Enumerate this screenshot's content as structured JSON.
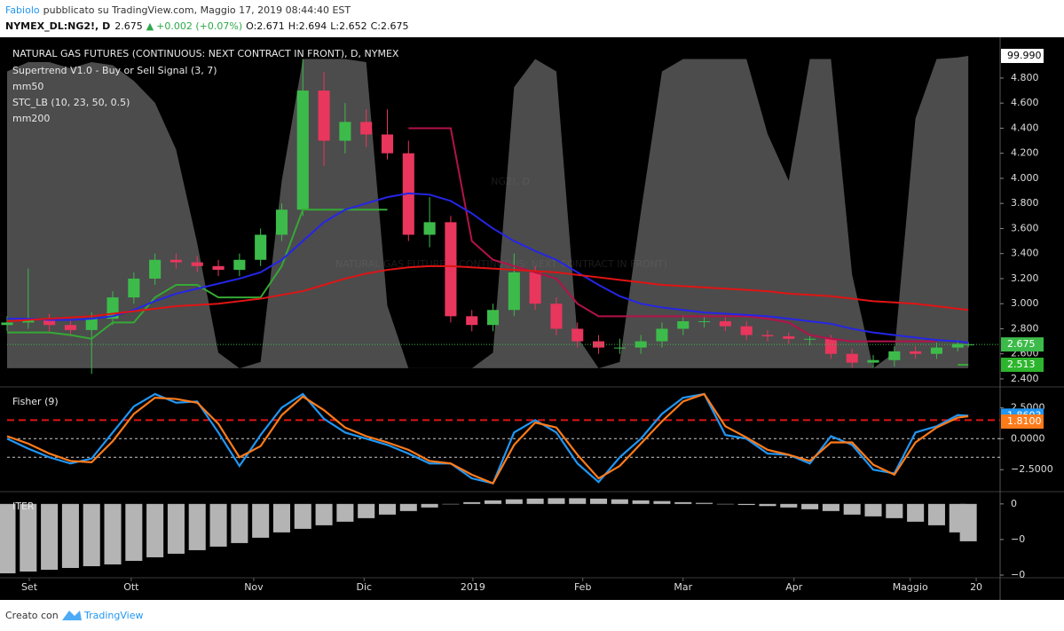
{
  "header": {
    "author": "Fabiolo",
    "published": "pubblicato su TradingView.com, Maggio 17, 2019 08:44:40 EST",
    "symbol": "NYMEX_DL:NG2!, D",
    "price": "2.675",
    "arrow": "▲",
    "change": "+0.002 (+0.07%)",
    "ohlc": [
      {
        "label": "O:",
        "value": "2.671"
      },
      {
        "label": "H:",
        "value": "2.694"
      },
      {
        "label": "L:",
        "value": "2.652"
      },
      {
        "label": "C:",
        "value": "2.675"
      }
    ]
  },
  "footer": {
    "text": "Creato con",
    "brand": "TradingView"
  },
  "chart_data": [
    {
      "type": "candlestick",
      "title": "NATURAL GAS FUTURES (CONTINUOUS: NEXT CONTRACT IN FRONT), D, NYMEX",
      "watermark": [
        "NG2!, D",
        "NATURAL GAS FUTURES (CONTINUOUS: NEXT CONTRACT IN FRONT)"
      ],
      "x": [
        0,
        4,
        8,
        12,
        16,
        20,
        24,
        28,
        32,
        36,
        40,
        44,
        48,
        52,
        56,
        60,
        64,
        68,
        72,
        76,
        80,
        84,
        88,
        92,
        96,
        100,
        104,
        108,
        112,
        116,
        120,
        124,
        128,
        132,
        136,
        140,
        144,
        148,
        152,
        156,
        160,
        164,
        168,
        172,
        176,
        180,
        182
      ],
      "open": [
        2.83,
        2.85,
        2.87,
        2.83,
        2.79,
        2.88,
        3.05,
        3.2,
        3.35,
        3.33,
        3.3,
        3.27,
        3.35,
        3.55,
        3.75,
        4.7,
        4.3,
        4.45,
        4.35,
        4.2,
        3.55,
        3.65,
        2.9,
        2.83,
        2.95,
        3.25,
        3.0,
        2.8,
        2.7,
        2.65,
        2.65,
        2.7,
        2.8,
        2.86,
        2.86,
        2.82,
        2.75,
        2.74,
        2.72,
        2.72,
        2.6,
        2.53,
        2.55,
        2.62,
        2.6,
        2.65,
        2.671
      ],
      "high": [
        2.9,
        3.28,
        2.92,
        2.88,
        2.93,
        3.1,
        3.25,
        3.4,
        3.4,
        3.38,
        3.35,
        3.4,
        3.6,
        3.8,
        4.95,
        4.85,
        4.6,
        4.55,
        4.55,
        4.3,
        3.85,
        3.7,
        2.95,
        3.0,
        3.4,
        3.3,
        3.05,
        2.85,
        2.75,
        2.72,
        2.75,
        2.85,
        2.91,
        2.9,
        2.89,
        2.86,
        2.79,
        2.77,
        2.76,
        2.75,
        2.64,
        2.59,
        2.66,
        2.66,
        2.69,
        2.71,
        2.694
      ],
      "low": [
        2.78,
        2.8,
        2.78,
        2.74,
        2.44,
        2.83,
        3.0,
        3.15,
        3.28,
        3.25,
        3.22,
        3.22,
        3.3,
        3.5,
        3.7,
        4.1,
        4.2,
        4.25,
        4.15,
        3.5,
        3.45,
        2.85,
        2.78,
        2.78,
        2.9,
        2.95,
        2.75,
        2.65,
        2.6,
        2.6,
        2.6,
        2.65,
        2.75,
        2.81,
        2.78,
        2.71,
        2.7,
        2.68,
        2.67,
        2.56,
        2.49,
        2.49,
        2.5,
        2.56,
        2.56,
        2.62,
        2.652
      ],
      "close": [
        2.85,
        2.87,
        2.83,
        2.79,
        2.88,
        3.05,
        3.2,
        3.35,
        3.33,
        3.3,
        3.27,
        3.35,
        3.55,
        3.75,
        4.7,
        4.3,
        4.45,
        4.35,
        4.2,
        3.55,
        3.65,
        2.9,
        2.83,
        2.95,
        3.25,
        3.0,
        2.8,
        2.7,
        2.65,
        2.65,
        2.7,
        2.8,
        2.86,
        2.86,
        2.82,
        2.75,
        2.74,
        2.72,
        2.72,
        2.6,
        2.53,
        2.55,
        2.62,
        2.6,
        2.65,
        2.68,
        2.675
      ],
      "up_color": "#3dbb4a",
      "down_color": "#e8365d",
      "series": [
        {
          "name": "Supertrend V1.0 - Buy or Sell Signal (3, 7)",
          "kind": "supertrend",
          "color": "#35a835",
          "down_color": "#b3124a",
          "values": [
            2.77,
            2.77,
            2.77,
            2.75,
            2.72,
            2.85,
            2.85,
            3.05,
            3.15,
            3.15,
            3.05,
            3.05,
            3.05,
            3.3,
            3.75,
            3.75,
            3.75,
            3.75,
            3.75,
            null,
            null,
            null,
            null,
            null,
            null,
            null,
            null,
            null,
            null,
            null,
            null,
            null,
            null,
            null,
            null,
            null,
            null,
            null,
            null,
            null,
            null,
            null,
            null,
            null,
            null,
            2.513,
            2.513
          ],
          "values_down": [
            null,
            null,
            null,
            null,
            null,
            null,
            null,
            null,
            null,
            null,
            null,
            null,
            null,
            null,
            null,
            null,
            null,
            null,
            null,
            4.4,
            4.4,
            4.4,
            3.5,
            3.35,
            3.3,
            3.25,
            3.2,
            3.0,
            2.9,
            2.9,
            2.9,
            2.9,
            2.9,
            2.9,
            2.9,
            2.9,
            2.88,
            2.85,
            2.75,
            2.72,
            2.7,
            2.7,
            2.7,
            2.7,
            2.7,
            null,
            null
          ]
        },
        {
          "name": "mm50",
          "color": "#2525e8",
          "values": [
            2.88,
            2.88,
            2.87,
            2.87,
            2.88,
            2.9,
            2.95,
            3.02,
            3.08,
            3.12,
            3.16,
            3.2,
            3.25,
            3.35,
            3.5,
            3.65,
            3.75,
            3.8,
            3.85,
            3.88,
            3.87,
            3.82,
            3.72,
            3.6,
            3.5,
            3.42,
            3.35,
            3.25,
            3.15,
            3.06,
            3.0,
            2.97,
            2.95,
            2.93,
            2.92,
            2.91,
            2.9,
            2.88,
            2.86,
            2.84,
            2.8,
            2.77,
            2.75,
            2.73,
            2.71,
            2.7,
            2.69
          ]
        },
        {
          "name": "STC_LB (10, 23, 50, 0.5)",
          "kind": "area",
          "axis": "y2",
          "color": "#8a8a8a",
          "last_value_label": "99.990",
          "values": [
            95,
            98,
            98,
            96,
            98,
            97,
            92,
            85,
            70,
            40,
            5,
            0,
            2,
            60,
            99,
            99,
            99,
            98,
            20,
            0,
            0,
            0,
            0,
            5,
            90,
            99,
            95,
            10,
            0,
            2,
            50,
            95,
            99,
            99,
            99,
            99,
            75,
            60,
            99,
            99,
            30,
            0,
            5,
            80,
            99,
            99.5,
            99.99
          ]
        },
        {
          "name": "mm200",
          "color": "#e01414",
          "values": [
            2.86,
            2.87,
            2.88,
            2.89,
            2.9,
            2.92,
            2.94,
            2.96,
            2.98,
            2.99,
            3.0,
            3.02,
            3.04,
            3.07,
            3.1,
            3.15,
            3.2,
            3.24,
            3.27,
            3.29,
            3.3,
            3.3,
            3.29,
            3.28,
            3.27,
            3.26,
            3.25,
            3.23,
            3.21,
            3.19,
            3.17,
            3.15,
            3.14,
            3.13,
            3.12,
            3.11,
            3.1,
            3.08,
            3.07,
            3.06,
            3.04,
            3.02,
            3.01,
            3.0,
            2.98,
            2.96,
            2.95
          ]
        }
      ],
      "xlim": [
        0,
        185
      ],
      "ylim": [
        2.343,
        5.104
      ],
      "y2lim": [
        -5.7,
        105.1
      ],
      "yticks": [
        {
          "value": 2.4,
          "label": "2.400"
        },
        {
          "value": 2.6,
          "label": "2.600"
        },
        {
          "value": 2.8,
          "label": "2.800"
        },
        {
          "value": 3.0,
          "label": "3.000"
        },
        {
          "value": 3.2,
          "label": "3.200"
        },
        {
          "value": 3.4,
          "label": "3.400"
        },
        {
          "value": 3.6,
          "label": "3.600"
        },
        {
          "value": 3.8,
          "label": "3.800"
        },
        {
          "value": 4.0,
          "label": "4.000"
        },
        {
          "value": 4.2,
          "label": "4.200"
        },
        {
          "value": 4.4,
          "label": "4.400"
        },
        {
          "value": 4.6,
          "label": "4.600"
        },
        {
          "value": 4.8,
          "label": "4.800"
        }
      ]
    },
    {
      "type": "line",
      "title": "Fisher (9)",
      "x": [
        0,
        4,
        8,
        12,
        16,
        20,
        24,
        28,
        32,
        36,
        40,
        44,
        48,
        52,
        56,
        60,
        64,
        68,
        72,
        76,
        80,
        84,
        88,
        92,
        96,
        100,
        104,
        108,
        112,
        116,
        120,
        124,
        128,
        132,
        136,
        140,
        144,
        148,
        152,
        156,
        160,
        164,
        168,
        172,
        176,
        180,
        182
      ],
      "series": [
        {
          "name": "Fisher",
          "color": "#2196f3",
          "last_value_label": "1.8603",
          "values": [
            0,
            -0.8,
            -1.5,
            -2.0,
            -1.6,
            0.5,
            2.6,
            3.6,
            2.9,
            3.0,
            0.5,
            -2.2,
            0.3,
            2.5,
            3.6,
            1.6,
            0.5,
            0,
            -0.5,
            -1.2,
            -2.0,
            -2.0,
            -3.2,
            -3.6,
            0.5,
            1.5,
            0.5,
            -2.0,
            -3.5,
            -1.5,
            0,
            2.0,
            3.3,
            3.6,
            0.3,
            0,
            -1.2,
            -1.3,
            -2.0,
            0.2,
            -0.5,
            -2.5,
            -2.8,
            0.5,
            1.0,
            1.9,
            1.8603
          ]
        },
        {
          "name": "Trigger",
          "color": "#ff7b1a",
          "last_value_label": "1.8100",
          "values": [
            0.2,
            -0.4,
            -1.2,
            -1.8,
            -1.9,
            -0.2,
            2.0,
            3.3,
            3.2,
            2.9,
            1.2,
            -1.5,
            -0.6,
            1.9,
            3.4,
            2.3,
            0.9,
            0.2,
            -0.3,
            -0.9,
            -1.8,
            -2.0,
            -2.9,
            -3.6,
            -0.5,
            1.3,
            0.9,
            -1.3,
            -3.2,
            -2.2,
            -0.4,
            1.4,
            3.0,
            3.6,
            1.0,
            0.1,
            -0.9,
            -1.3,
            -1.8,
            -0.3,
            -0.3,
            -2.1,
            -2.9,
            -0.3,
            0.9,
            1.7,
            1.81
          ]
        }
      ],
      "levels": [
        {
          "value": 1.5,
          "color": "#e01414"
        },
        {
          "value": 0,
          "color": "#cccccc"
        },
        {
          "value": -1.5,
          "color": "#cccccc"
        }
      ],
      "xlim": [
        0,
        185
      ],
      "ylim": [
        -4.2,
        4.1
      ],
      "yticks": [
        {
          "value": 2.5,
          "label": "2.5000"
        },
        {
          "value": 0,
          "label": "0.0000"
        },
        {
          "value": -2.5,
          "label": "−2.5000"
        }
      ]
    },
    {
      "type": "bar",
      "title": "ITER",
      "color": "#b4b4b4",
      "x": [
        0,
        4,
        8,
        12,
        16,
        20,
        24,
        28,
        32,
        36,
        40,
        44,
        48,
        52,
        56,
        60,
        64,
        68,
        72,
        76,
        80,
        84,
        88,
        92,
        96,
        100,
        104,
        108,
        112,
        116,
        120,
        124,
        128,
        132,
        136,
        140,
        144,
        148,
        152,
        156,
        160,
        164,
        168,
        172,
        176,
        180,
        182
      ],
      "values": [
        -0.0195,
        -0.019,
        -0.0185,
        -0.018,
        -0.0175,
        -0.017,
        -0.016,
        -0.015,
        -0.014,
        -0.013,
        -0.012,
        -0.011,
        -0.0095,
        -0.008,
        -0.007,
        -0.006,
        -0.005,
        -0.004,
        -0.003,
        -0.002,
        -0.001,
        0,
        0.0005,
        0.001,
        0.0013,
        0.0015,
        0.0016,
        0.0016,
        0.0015,
        0.0013,
        0.001,
        0.0008,
        0.0005,
        0.0003,
        0,
        -0.0003,
        -0.0006,
        -0.001,
        -0.0015,
        -0.002,
        -0.003,
        -0.0035,
        -0.004,
        -0.005,
        -0.006,
        -0.008,
        -0.0105
      ],
      "xlim": [
        0,
        185
      ],
      "ylim": [
        -0.0205,
        0.0032
      ],
      "yticks": [
        {
          "value": 0,
          "label": "0"
        },
        {
          "value": -0.01,
          "label": "−0"
        },
        {
          "value": -0.02,
          "label": "−0"
        }
      ],
      "xticks": [
        {
          "value": 4.2,
          "label": "Set"
        },
        {
          "value": 23.5,
          "label": "Ott"
        },
        {
          "value": 46.7,
          "label": "Nov"
        },
        {
          "value": 67.6,
          "label": "Dic"
        },
        {
          "value": 88.2,
          "label": "2019"
        },
        {
          "value": 109,
          "label": "Feb"
        },
        {
          "value": 128,
          "label": "Mar"
        },
        {
          "value": 149,
          "label": "Apr"
        },
        {
          "value": 171,
          "label": "Maggio"
        },
        {
          "value": 183.5,
          "label": "20"
        }
      ]
    }
  ]
}
